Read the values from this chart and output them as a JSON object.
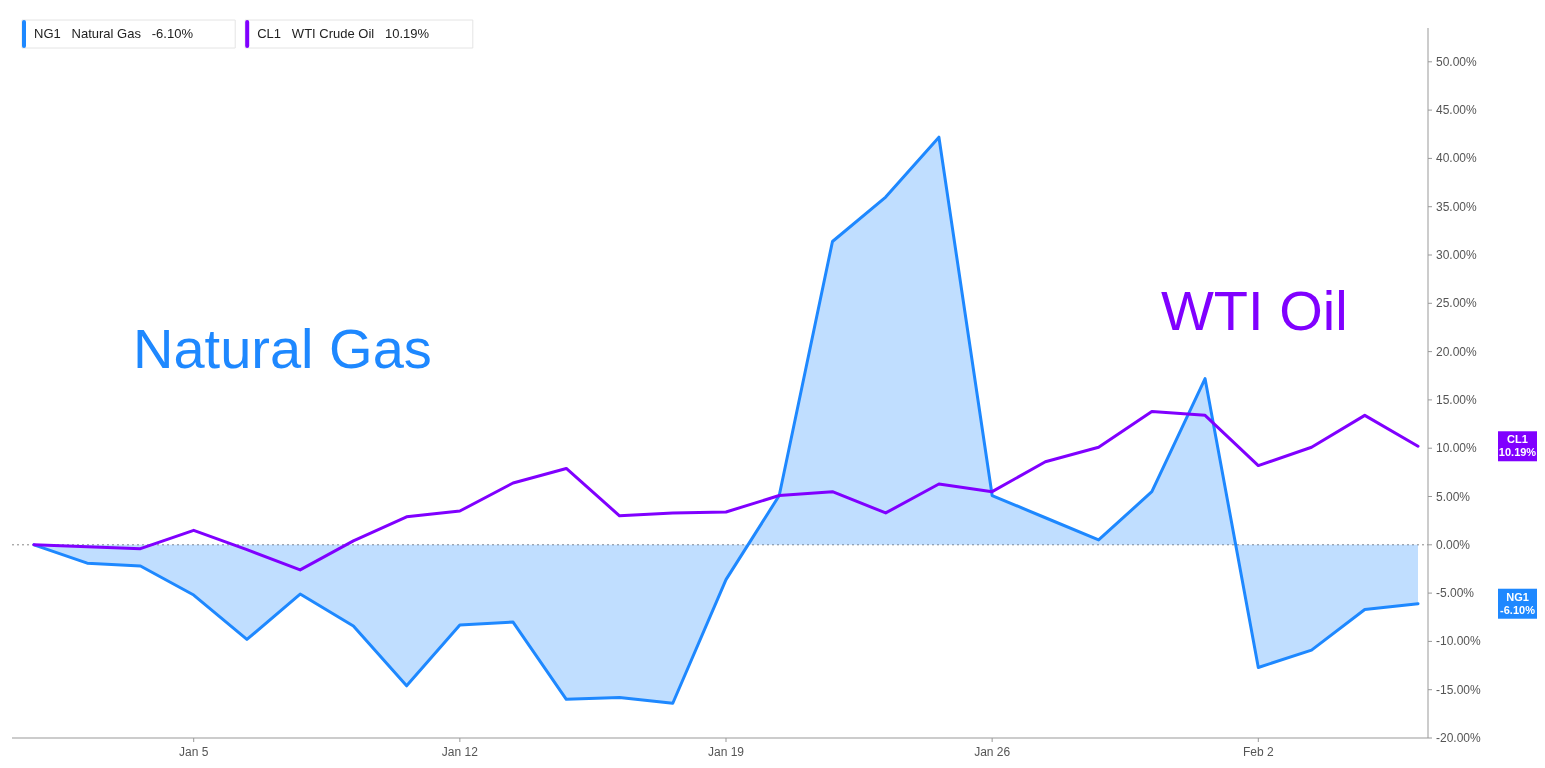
{
  "chart_data": {
    "type": "area",
    "categories": [
      null,
      null,
      null,
      "Jan 5",
      null,
      null,
      null,
      null,
      "Jan 12",
      null,
      null,
      null,
      null,
      "Jan 19",
      null,
      null,
      null,
      null,
      "Jan 26",
      null,
      null,
      null,
      null,
      "Feb 2",
      null,
      null,
      null
    ],
    "series": [
      {
        "name": "NG1   Natural Gas   -6.10%",
        "type": "area",
        "color": "#1e88ff",
        "values": [
          0,
          -1.9,
          -2.2,
          -5.2,
          -9.8,
          -5.1,
          -8.4,
          -14.6,
          -8.3,
          -8.0,
          -16.0,
          -15.8,
          -16.4,
          -3.6,
          5.1,
          31.4,
          36.0,
          42.2,
          5.1,
          2.8,
          0.5,
          5.5,
          17.2,
          -12.7,
          -10.9,
          -6.7,
          -6.1
        ]
      },
      {
        "name": "CL1   WTI Crude Oil   10.19%",
        "type": "line",
        "color": "#8000ff",
        "values": [
          0,
          -0.2,
          -0.4,
          1.5,
          -0.5,
          -2.6,
          0.4,
          2.9,
          3.5,
          6.4,
          7.9,
          3.0,
          3.3,
          3.4,
          5.1,
          5.5,
          3.3,
          6.3,
          5.5,
          8.6,
          10.1,
          13.8,
          13.4,
          8.2,
          10.1,
          13.4,
          10.2
        ]
      }
    ],
    "ylim": [
      -20,
      53.5
    ],
    "yticks": [
      {
        "value": -20,
        "label": "-20.00%"
      },
      {
        "value": -15,
        "label": "-15.00%"
      },
      {
        "value": -10,
        "label": "-10.00%"
      },
      {
        "value": -5,
        "label": "-5.00%"
      },
      {
        "value": 0,
        "label": "0.00%"
      },
      {
        "value": 5,
        "label": "5.00%"
      },
      {
        "value": 10,
        "label": "10.00%"
      },
      {
        "value": 15,
        "label": "15.00%"
      },
      {
        "value": 20,
        "label": "20.00%"
      },
      {
        "value": 25,
        "label": "25.00%"
      },
      {
        "value": 30,
        "label": "30.00%"
      },
      {
        "value": 35,
        "label": "35.00%"
      },
      {
        "value": 40,
        "label": "40.00%"
      },
      {
        "value": 45,
        "label": "45.00%"
      },
      {
        "value": 50,
        "label": "50.00%"
      }
    ],
    "ref_lines": [
      {
        "axis": "y",
        "value": 0,
        "line_style": "dotted",
        "color": "#888888"
      }
    ],
    "annotations": [
      "Natural Gas",
      "WTI Oil",
      "NG1 -6.10%",
      "CL1 10.19%"
    ],
    "legend": "top left",
    "grid": false,
    "marker": "none"
  }
}
